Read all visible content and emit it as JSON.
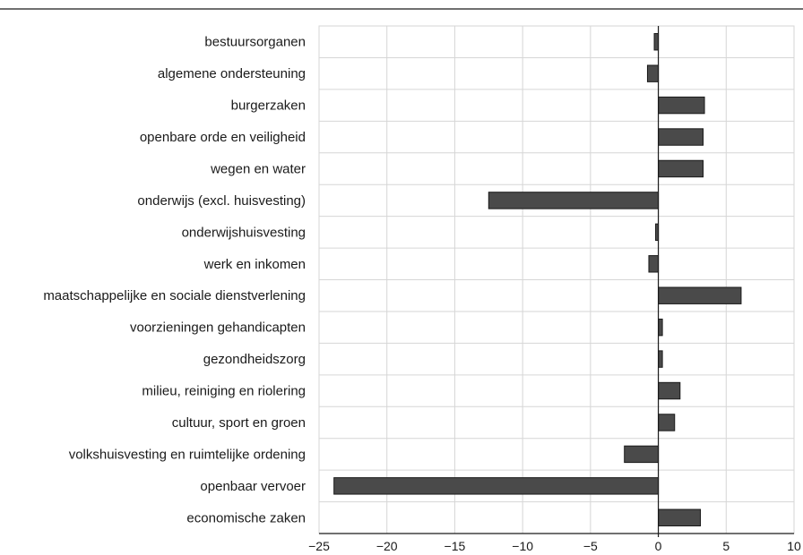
{
  "chart_data": {
    "type": "bar",
    "orientation": "horizontal",
    "categories": [
      "bestuursorganen",
      "algemene ondersteuning",
      "burgerzaken",
      "openbare orde en veiligheid",
      "wegen en water",
      "onderwijs (excl. huisvesting)",
      "onderwijshuisvesting",
      "werk en inkomen",
      "maatschappelijke en sociale dienstverlening",
      "voorzieningen gehandicapten",
      "gezondheidszorg",
      "milieu, reiniging en riolering",
      "cultuur, sport en groen",
      "volkshuisvesting en ruimtelijke ordening",
      "openbaar vervoer",
      "economische zaken"
    ],
    "values": [
      -0.3,
      -0.8,
      3.4,
      3.3,
      3.3,
      -12.5,
      -0.2,
      -0.7,
      6.1,
      0.3,
      0.3,
      1.6,
      1.2,
      -2.5,
      -23.9,
      3.1
    ],
    "xlim": [
      -25,
      10
    ],
    "xticks": [
      -25,
      -20,
      -15,
      -10,
      -5,
      0,
      5,
      10
    ],
    "xtick_labels": [
      "−25",
      "−20",
      "−15",
      "−10",
      "−5",
      "0",
      "5",
      "10"
    ],
    "title": "",
    "xlabel": "",
    "ylabel": "",
    "grid": true,
    "bar_color": "#4a4a4a"
  }
}
